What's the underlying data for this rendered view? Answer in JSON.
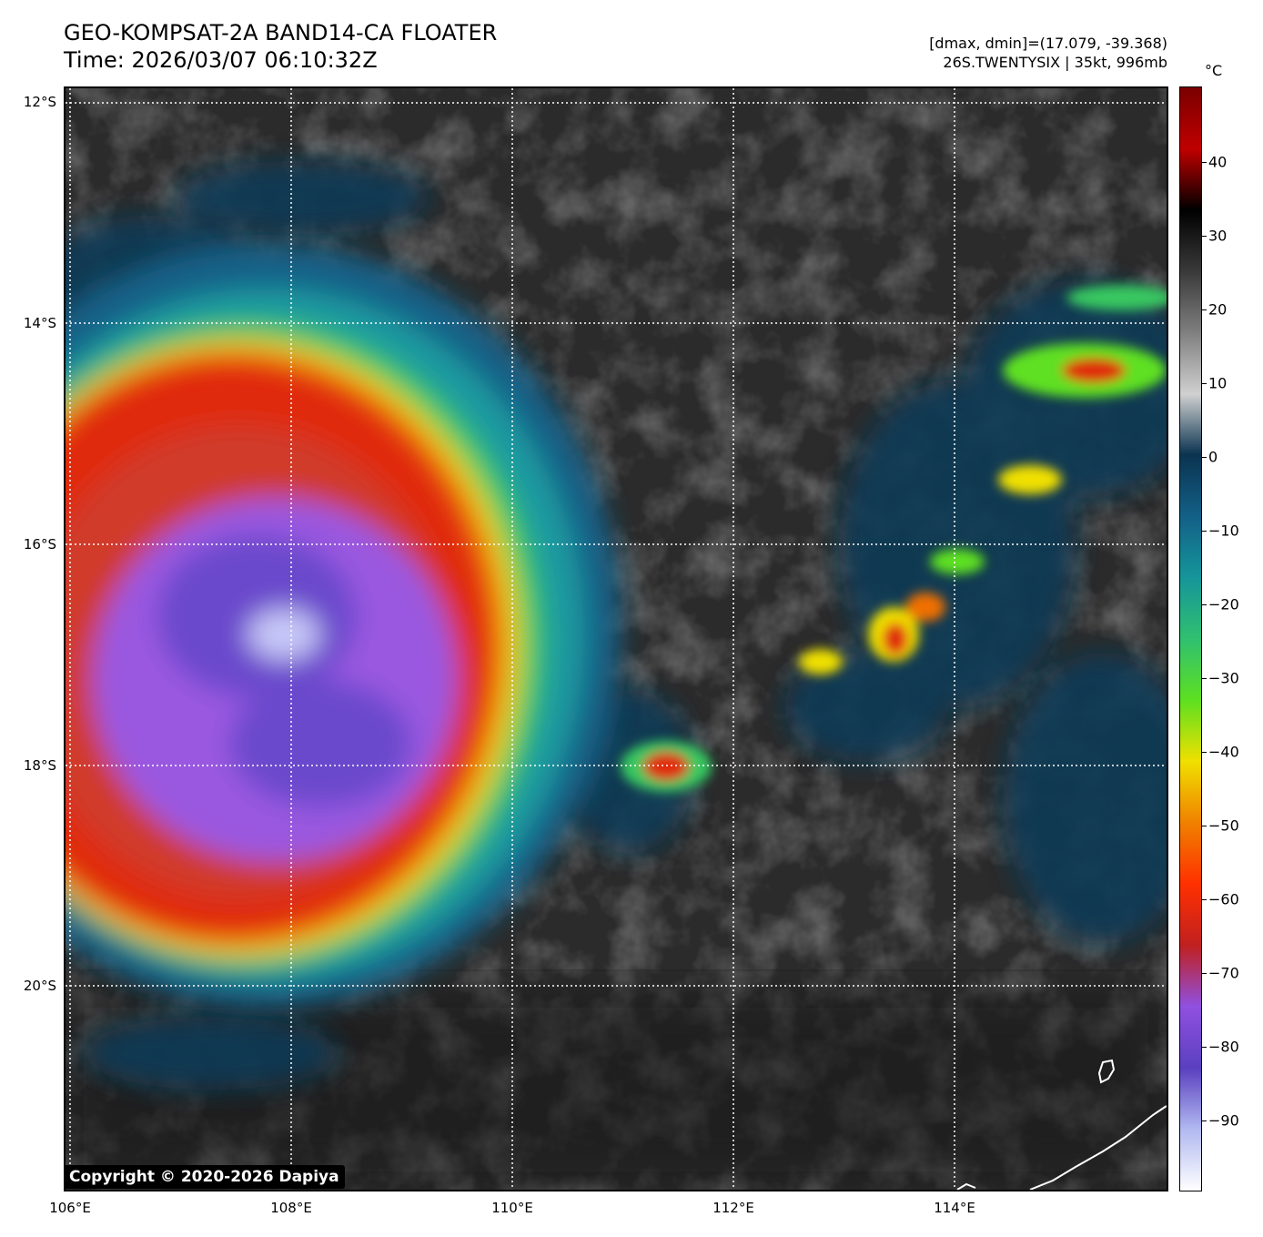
{
  "header": {
    "title_line1": "GEO-KOMPSAT-2A BAND14-CA FLOATER",
    "title_line2": "Time: 2026/03/07 06:10:32Z",
    "info_line1": "[dmax, dmin]=(17.079, -39.368)",
    "info_line2": "26S.TWENTYSIX | 35kt, 996mb"
  },
  "map": {
    "lat_labels": [
      "12°S",
      "14°S",
      "16°S",
      "18°S",
      "20°S"
    ],
    "lon_labels": [
      "106°E",
      "108°E",
      "110°E",
      "112°E",
      "114°E"
    ],
    "copyright": "Copyright © 2020-2026 Dapiya"
  },
  "colorbar": {
    "unit": "°C",
    "ticks": [
      "40",
      "30",
      "20",
      "10",
      "0",
      "−10",
      "−20",
      "−30",
      "−40",
      "−50",
      "−60",
      "−70",
      "−80",
      "−90"
    ],
    "colors": [
      "#7a0000",
      "#c00000",
      "#000000",
      "#3a3a3a",
      "#7f7f7f",
      "#d0d0d0",
      "#0b3350",
      "#136087",
      "#15959a",
      "#30c070",
      "#5ee020",
      "#f0e000",
      "#f08000",
      "#ff3000",
      "#c02020",
      "#9050e0",
      "#5a40c0",
      "#b0b8f0",
      "#ffffff"
    ]
  }
}
